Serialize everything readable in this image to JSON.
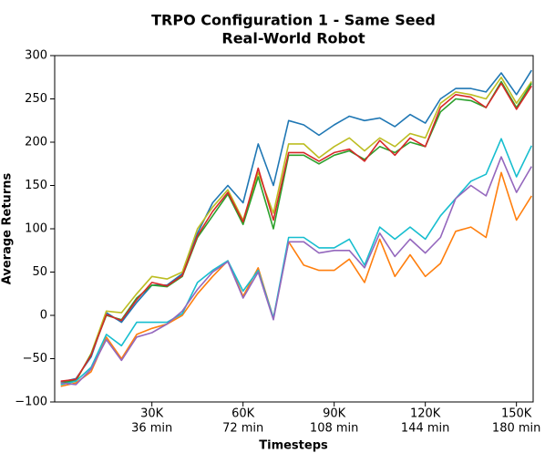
{
  "chart_data": {
    "type": "line",
    "title": "TRPO Configuration 1 - Same Seed",
    "subtitle": "Real-World Robot",
    "xlabel": "Timesteps",
    "ylabel": "Average Returns",
    "x": [
      0,
      5000,
      10000,
      15000,
      20000,
      25000,
      30000,
      35000,
      40000,
      45000,
      50000,
      55000,
      60000,
      65000,
      70000,
      75000,
      80000,
      85000,
      90000,
      95000,
      100000,
      105000,
      110000,
      115000,
      120000,
      125000,
      130000,
      135000,
      140000,
      145000,
      150000,
      155000
    ],
    "xlim": [
      -2000,
      155500
    ],
    "ylim": [
      -100,
      300
    ],
    "xticks": [
      {
        "value": 30000,
        "label": "30K"
      },
      {
        "value": 60000,
        "label": "60K"
      },
      {
        "value": 90000,
        "label": "90K"
      },
      {
        "value": 120000,
        "label": "120K"
      },
      {
        "value": 150000,
        "label": "150K"
      }
    ],
    "xtick_time_labels": [
      "36 min",
      "72 min",
      "108 min",
      "144 min",
      "180 min"
    ],
    "yticks": [
      {
        "value": -100,
        "label": "−100"
      },
      {
        "value": -50,
        "label": "−50"
      },
      0,
      50,
      100,
      150,
      200,
      250,
      300
    ],
    "grid": false,
    "series": [
      {
        "color": "#1f77b4",
        "values": [
          -77,
          -73,
          -48,
          3,
          -8,
          15,
          35,
          35,
          48,
          95,
          130,
          150,
          130,
          198,
          150,
          225,
          220,
          208,
          220,
          230,
          225,
          228,
          218,
          232,
          222,
          250,
          262,
          262,
          258,
          280,
          255,
          283
        ]
      },
      {
        "color": "#bcbd22",
        "values": [
          -80,
          -76,
          -44,
          5,
          3,
          25,
          45,
          42,
          50,
          100,
          125,
          145,
          110,
          165,
          118,
          198,
          198,
          182,
          195,
          205,
          190,
          205,
          195,
          210,
          205,
          245,
          258,
          255,
          250,
          275,
          245,
          270
        ]
      },
      {
        "color": "#2ca02c",
        "values": [
          -78,
          -75,
          -45,
          0,
          -5,
          20,
          35,
          33,
          45,
          90,
          115,
          140,
          105,
          160,
          100,
          185,
          185,
          175,
          185,
          190,
          180,
          195,
          188,
          200,
          195,
          235,
          250,
          248,
          240,
          270,
          240,
          268
        ]
      },
      {
        "color": "#d62728",
        "values": [
          -76,
          -74,
          -46,
          1,
          -6,
          18,
          38,
          34,
          46,
          92,
          120,
          142,
          108,
          170,
          110,
          188,
          188,
          178,
          188,
          192,
          178,
          202,
          185,
          205,
          195,
          240,
          255,
          252,
          240,
          268,
          238,
          265
        ]
      },
      {
        "color": "#ff7f0e",
        "values": [
          -82,
          -78,
          -65,
          -25,
          -50,
          -22,
          -15,
          -10,
          0,
          25,
          45,
          63,
          22,
          55,
          -3,
          85,
          58,
          52,
          52,
          65,
          38,
          88,
          45,
          70,
          45,
          60,
          97,
          102,
          90,
          165,
          110,
          138
        ]
      },
      {
        "color": "#17becf",
        "values": [
          -80,
          -76,
          -60,
          -22,
          -35,
          -8,
          -8,
          -8,
          2,
          38,
          52,
          63,
          28,
          52,
          -3,
          90,
          90,
          78,
          78,
          88,
          58,
          102,
          88,
          102,
          88,
          115,
          135,
          155,
          163,
          204,
          160,
          196
        ]
      },
      {
        "color": "#9467bd",
        "values": [
          -78,
          -80,
          -62,
          -28,
          -52,
          -25,
          -20,
          -10,
          5,
          30,
          50,
          62,
          20,
          50,
          -5,
          85,
          85,
          72,
          75,
          75,
          55,
          95,
          68,
          88,
          72,
          90,
          135,
          150,
          138,
          183,
          142,
          172
        ]
      }
    ]
  }
}
